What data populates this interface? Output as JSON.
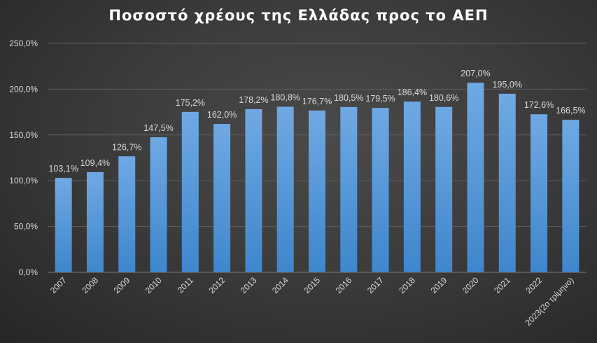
{
  "chart_data": {
    "type": "bar",
    "title": "Ποσοστό χρέους της Ελλάδας προς το ΑΕΠ",
    "xlabel": "",
    "ylabel": "",
    "categories": [
      "2007",
      "2008",
      "2009",
      "2010",
      "2011",
      "2012",
      "2013",
      "2014",
      "2015",
      "2016",
      "2017",
      "2018",
      "2019",
      "2020",
      "2021",
      "2022",
      "2023(2ο τρίμηνο)"
    ],
    "values": [
      103.1,
      109.4,
      126.7,
      147.5,
      175.2,
      162.0,
      178.2,
      180.8,
      176.7,
      180.5,
      179.5,
      186.4,
      180.6,
      207.0,
      195.0,
      172.6,
      166.5
    ],
    "data_labels": [
      "103,1%",
      "109,4%",
      "126,7%",
      "147,5%",
      "175,2%",
      "162,0%",
      "178,2%",
      "180,8%",
      "176,7%",
      "180,5%",
      "179,5%",
      "186,4%",
      "180,6%",
      "207,0%",
      "195,0%",
      "172,6%",
      "166,5%"
    ],
    "ylim": [
      0,
      250
    ],
    "yticks": [
      0,
      50,
      100,
      150,
      200,
      250
    ],
    "ytick_labels": [
      "0,0%",
      "50,0%",
      "100,0%",
      "150,0%",
      "200,0%",
      "250,0%"
    ],
    "grid": true,
    "legend": "none",
    "x_tick_rotation": "-45deg",
    "colors": {
      "bar_top": "#6fa9e3",
      "bar_bottom": "#3f86cc",
      "background": "#404040",
      "text": "#d9d9d9",
      "title": "#ffffff"
    }
  }
}
